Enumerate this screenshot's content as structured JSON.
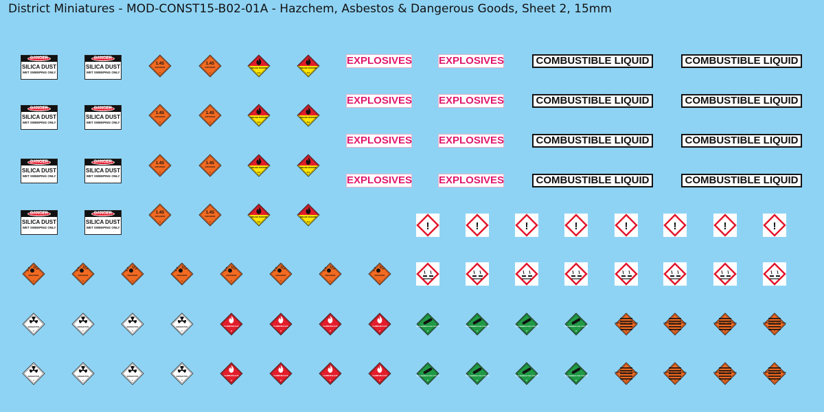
{
  "title": "District Miniatures - MOD-CONST15-B02-01A - Hazchem, Asbestos & Dangerous Goods, Sheet 2, 15mm",
  "danger_sign": {
    "header": "DANGER",
    "line1": "SILICA DUST",
    "line2": "WET SWEEPING ONLY"
  },
  "explosive_14s": {
    "number": "1.4S",
    "word": "EXPLOSIVE",
    "class": "1"
  },
  "organic_peroxide": {
    "word": "ORGANIC PEROXIDE",
    "class": "5.2"
  },
  "explosives_label": "EXPLOSIVES",
  "combustible_label": "COMBUSTIBLE LIQUID",
  "explosive_plain": {
    "word": "EXPLOSIVE",
    "class": "1"
  },
  "radioactive": {
    "word": "RADIOACTIVE",
    "class": "7"
  },
  "flammable_gas": {
    "word": "FLAMMABLE GAS",
    "class": "2"
  },
  "non_flammable_gas": {
    "word": "NON-FLAMMABLE NON-TOXIC GAS",
    "class": "2"
  },
  "spontaneous": {
    "word": "SPONTANEOUSLY COMBUSTIBLE",
    "class": "4"
  },
  "colors": {
    "background": "#8fd3f4",
    "danger_red": "#e2152a",
    "explosive_orange": "#f26a21",
    "flammable_red": "#e31d2b",
    "gas_green": "#1f9a45",
    "peroxide_yellow": "#ffe600",
    "pink_text": "#e0176d"
  },
  "icons": [
    "exclamation-icon",
    "corrosive-icon",
    "flame-icon",
    "bomb-icon",
    "trefoil-icon",
    "gas-cylinder-icon"
  ],
  "layout": {
    "danger_signs": 8,
    "explosive_14s_signs": 8,
    "organic_peroxide_signs": 8,
    "explosives_labels": 8,
    "combustible_labels": 8,
    "ghs_exclamation": 8,
    "ghs_corrosive": 8,
    "explosive_plain_signs": 8,
    "radioactive_signs": 8,
    "flammable_signs": 8,
    "green_gas_signs": 8,
    "spontaneous_signs": 8
  }
}
